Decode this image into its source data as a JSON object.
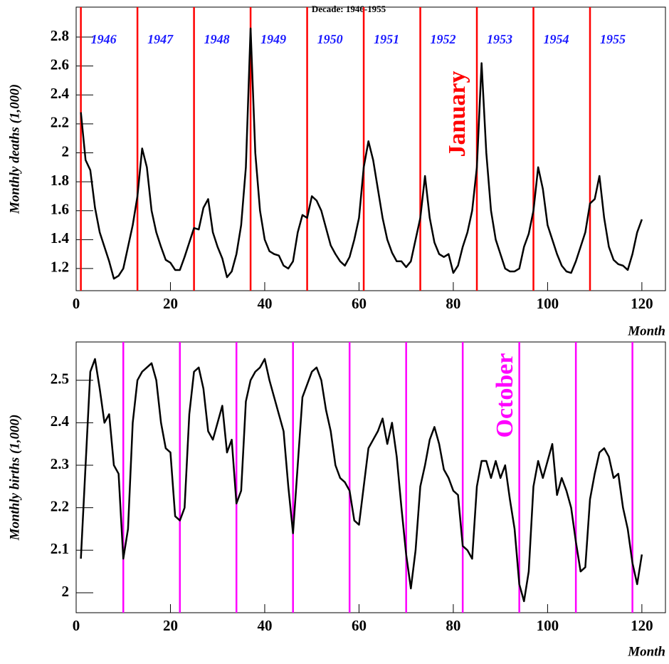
{
  "chart_data": [
    {
      "type": "line",
      "title": "Decade: 1946-1955",
      "y_label": "Monthly deaths (1,000)",
      "x_label": "Month",
      "x": [
        1,
        2,
        3,
        4,
        5,
        6,
        7,
        8,
        9,
        10,
        11,
        12,
        13,
        14,
        15,
        16,
        17,
        18,
        19,
        20,
        21,
        22,
        23,
        24,
        25,
        26,
        27,
        28,
        29,
        30,
        31,
        32,
        33,
        34,
        35,
        36,
        37,
        38,
        39,
        40,
        41,
        42,
        43,
        44,
        45,
        46,
        47,
        48,
        49,
        50,
        51,
        52,
        53,
        54,
        55,
        56,
        57,
        58,
        59,
        60,
        61,
        62,
        63,
        64,
        65,
        66,
        67,
        68,
        69,
        70,
        71,
        72,
        73,
        74,
        75,
        76,
        77,
        78,
        79,
        80,
        81,
        82,
        83,
        84,
        85,
        86,
        87,
        88,
        89,
        90,
        91,
        92,
        93,
        94,
        95,
        96,
        97,
        98,
        99,
        100,
        101,
        102,
        103,
        104,
        105,
        106,
        107,
        108,
        109,
        110,
        111,
        112,
        113,
        114,
        115,
        116,
        117,
        118,
        119,
        120
      ],
      "series": [
        {
          "name": "deaths",
          "color": "#000000",
          "values": [
            2.28,
            1.95,
            1.88,
            1.62,
            1.45,
            1.35,
            1.25,
            1.13,
            1.15,
            1.2,
            1.35,
            1.5,
            1.7,
            2.03,
            1.9,
            1.6,
            1.45,
            1.35,
            1.26,
            1.24,
            1.19,
            1.19,
            1.28,
            1.38,
            1.48,
            1.47,
            1.62,
            1.68,
            1.45,
            1.35,
            1.27,
            1.14,
            1.18,
            1.3,
            1.5,
            1.9,
            2.86,
            2.0,
            1.6,
            1.4,
            1.32,
            1.3,
            1.29,
            1.22,
            1.2,
            1.25,
            1.45,
            1.57,
            1.55,
            1.7,
            1.67,
            1.6,
            1.48,
            1.36,
            1.3,
            1.25,
            1.22,
            1.28,
            1.4,
            1.55,
            1.9,
            2.08,
            1.95,
            1.75,
            1.55,
            1.4,
            1.31,
            1.25,
            1.25,
            1.21,
            1.25,
            1.4,
            1.55,
            1.84,
            1.55,
            1.38,
            1.3,
            1.28,
            1.3,
            1.17,
            1.22,
            1.35,
            1.45,
            1.6,
            1.9,
            2.62,
            2.0,
            1.6,
            1.4,
            1.3,
            1.2,
            1.18,
            1.18,
            1.2,
            1.35,
            1.44,
            1.6,
            1.9,
            1.75,
            1.5,
            1.4,
            1.3,
            1.22,
            1.18,
            1.17,
            1.25,
            1.35,
            1.45,
            1.65,
            1.68,
            1.84,
            1.55,
            1.35,
            1.26,
            1.23,
            1.22,
            1.19,
            1.3,
            1.45,
            1.54
          ]
        }
      ],
      "xlim": [
        0,
        125
      ],
      "xticks": [
        0,
        20,
        40,
        60,
        80,
        100,
        120
      ],
      "ylim": [
        1.047,
        3.007
      ],
      "yticks": [
        1.2,
        1.4,
        1.6,
        1.8,
        2,
        2.2,
        2.4,
        2.6,
        2.8
      ],
      "vlines": [
        1,
        13,
        25,
        37,
        49,
        61,
        73,
        85,
        97,
        109
      ],
      "vline_color": "#ff0000",
      "vline_labels": [
        "1946",
        "1947",
        "1948",
        "1949",
        "1950",
        "1951",
        "1952",
        "1953",
        "1954",
        "1955"
      ],
      "annotation": "January"
    },
    {
      "type": "line",
      "y_label": "Monthly births (1,000)",
      "x_label": "Month",
      "x": [
        1,
        2,
        3,
        4,
        5,
        6,
        7,
        8,
        9,
        10,
        11,
        12,
        13,
        14,
        15,
        16,
        17,
        18,
        19,
        20,
        21,
        22,
        23,
        24,
        25,
        26,
        27,
        28,
        29,
        30,
        31,
        32,
        33,
        34,
        35,
        36,
        37,
        38,
        39,
        40,
        41,
        42,
        43,
        44,
        45,
        46,
        47,
        48,
        49,
        50,
        51,
        52,
        53,
        54,
        55,
        56,
        57,
        58,
        59,
        60,
        61,
        62,
        63,
        64,
        65,
        66,
        67,
        68,
        69,
        70,
        71,
        72,
        73,
        74,
        75,
        76,
        77,
        78,
        79,
        80,
        81,
        82,
        83,
        84,
        85,
        86,
        87,
        88,
        89,
        90,
        91,
        92,
        93,
        94,
        95,
        96,
        97,
        98,
        99,
        100,
        101,
        102,
        103,
        104,
        105,
        106,
        107,
        108,
        109,
        110,
        111,
        112,
        113,
        114,
        115,
        116,
        117,
        118,
        119,
        120
      ],
      "series": [
        {
          "name": "births",
          "color": "#000000",
          "values": [
            2.08,
            2.3,
            2.52,
            2.55,
            2.48,
            2.4,
            2.42,
            2.3,
            2.28,
            2.08,
            2.15,
            2.4,
            2.5,
            2.52,
            2.53,
            2.54,
            2.5,
            2.4,
            2.34,
            2.33,
            2.18,
            2.17,
            2.2,
            2.42,
            2.52,
            2.53,
            2.48,
            2.38,
            2.36,
            2.4,
            2.44,
            2.33,
            2.36,
            2.21,
            2.24,
            2.45,
            2.5,
            2.52,
            2.53,
            2.55,
            2.5,
            2.46,
            2.42,
            2.38,
            2.25,
            2.14,
            2.3,
            2.46,
            2.49,
            2.52,
            2.53,
            2.5,
            2.43,
            2.38,
            2.3,
            2.27,
            2.26,
            2.24,
            2.17,
            2.16,
            2.25,
            2.34,
            2.36,
            2.38,
            2.41,
            2.35,
            2.4,
            2.32,
            2.2,
            2.09,
            2.01,
            2.1,
            2.25,
            2.3,
            2.36,
            2.39,
            2.35,
            2.29,
            2.27,
            2.24,
            2.23,
            2.11,
            2.1,
            2.08,
            2.25,
            2.31,
            2.31,
            2.27,
            2.31,
            2.27,
            2.3,
            2.22,
            2.15,
            2.02,
            1.98,
            2.05,
            2.25,
            2.31,
            2.27,
            2.31,
            2.35,
            2.23,
            2.27,
            2.24,
            2.2,
            2.12,
            2.05,
            2.06,
            2.22,
            2.28,
            2.33,
            2.34,
            2.32,
            2.27,
            2.28,
            2.2,
            2.15,
            2.07,
            2.02,
            2.09
          ]
        }
      ],
      "xlim": [
        0,
        125
      ],
      "xticks": [
        0,
        20,
        40,
        60,
        80,
        100,
        120
      ],
      "ylim": [
        1.953,
        2.59
      ],
      "yticks": [
        2,
        2.1,
        2.2,
        2.3,
        2.4,
        2.5
      ],
      "vlines": [
        10,
        22,
        34,
        46,
        58,
        70,
        82,
        94,
        106,
        118
      ],
      "vline_color": "#ff00ff",
      "annotation": "October"
    }
  ]
}
